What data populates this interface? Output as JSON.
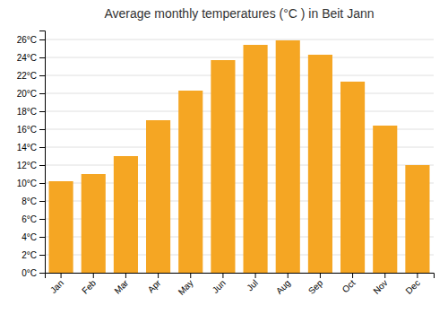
{
  "chart_data": {
    "type": "bar",
    "title": "Average monthly temperatures (°C ) in Beit Jann",
    "categories": [
      "Jan",
      "Feb",
      "Mar",
      "Apr",
      "May",
      "Jun",
      "Jul",
      "Aug",
      "Sep",
      "Oct",
      "Nov",
      "Dec"
    ],
    "values": [
      10.2,
      11.0,
      13.0,
      17.0,
      20.3,
      23.7,
      25.4,
      25.9,
      24.3,
      21.3,
      16.4,
      12.0
    ],
    "color": "#F5A623",
    "ylim": [
      0,
      27
    ],
    "yticks": [
      {
        "value": 0,
        "label": "0°C"
      },
      {
        "value": 2,
        "label": "2°C"
      },
      {
        "value": 4,
        "label": "4°C"
      },
      {
        "value": 6,
        "label": "6°C"
      },
      {
        "value": 8,
        "label": "8°C"
      },
      {
        "value": 10,
        "label": "10°C"
      },
      {
        "value": 12,
        "label": "12°C"
      },
      {
        "value": 14,
        "label": "14°C"
      },
      {
        "value": 16,
        "label": "16°C"
      },
      {
        "value": 18,
        "label": "18°C"
      },
      {
        "value": 20,
        "label": "20°C"
      },
      {
        "value": 22,
        "label": "22°C"
      },
      {
        "value": 24,
        "label": "24°C"
      },
      {
        "value": 26,
        "label": "26°C"
      }
    ],
    "grid": true
  }
}
